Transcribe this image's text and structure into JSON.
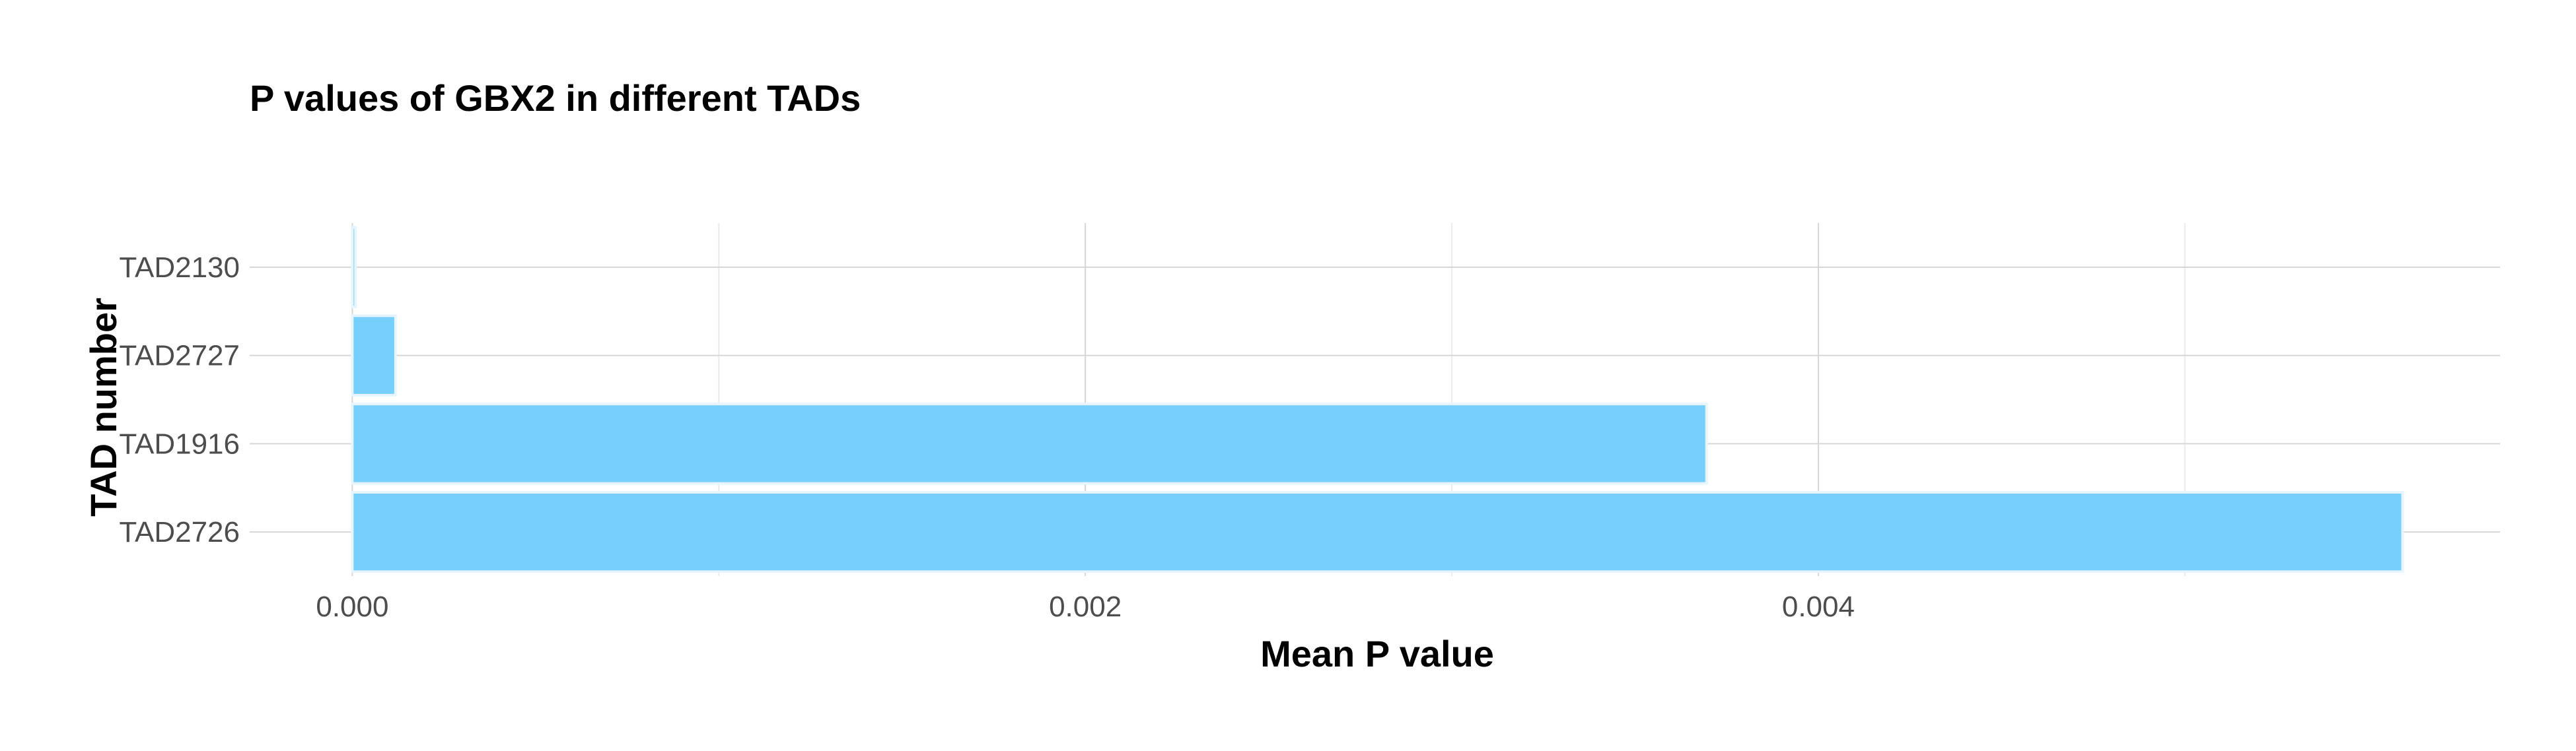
{
  "chart_data": {
    "type": "bar",
    "orientation": "horizontal",
    "title": "P values of GBX2 in different TADs",
    "xlabel": "Mean P value",
    "ylabel": "TAD number",
    "categories": [
      "TAD2130",
      "TAD2727",
      "TAD1916",
      "TAD2726"
    ],
    "values": [
      8.9e-06,
      0.000118,
      0.003695,
      0.005594
    ],
    "xlim": [
      -0.00028,
      0.00586
    ],
    "x_ticks": [
      0.0,
      0.002,
      0.004
    ],
    "x_tick_labels": [
      "0.000",
      "0.002",
      "0.004"
    ],
    "grid": true,
    "bar_color": "#76cffc",
    "bar_edge_color": "#e6f5ff"
  }
}
